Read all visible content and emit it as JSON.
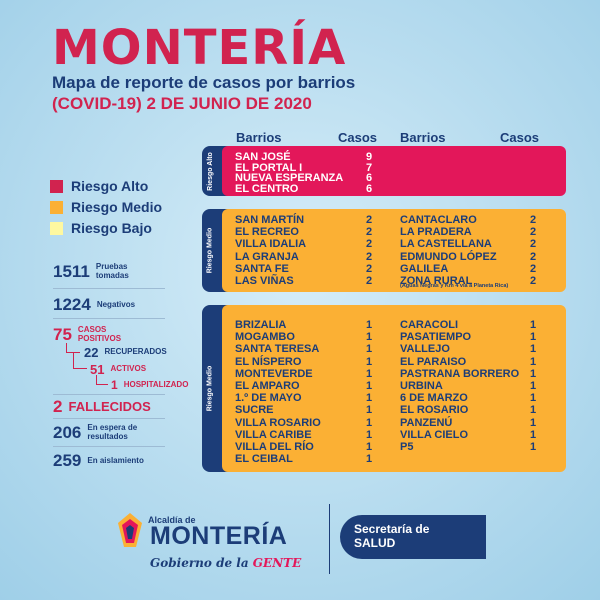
{
  "header": {
    "title": "MONTERÍA",
    "subtitle_line1": "Mapa de reporte de casos por barrios",
    "subtitle_line2": "(COVID-19) 2  DE JUNIO DE 2020"
  },
  "legend": [
    {
      "label": "Riesgo Alto",
      "color": "#d1234f"
    },
    {
      "label": "Riesgo Medio",
      "color": "#fbb034"
    },
    {
      "label": "Riesgo Bajo",
      "color": "#fef8a0"
    }
  ],
  "stats": {
    "pruebas": {
      "num": "1511",
      "label": "Pruebas tomadas"
    },
    "negativos": {
      "num": "1224",
      "label": "Negativos"
    },
    "positivos": {
      "num": "75",
      "label": "CASOS POSITIVOS"
    },
    "recuperados": {
      "num": "22",
      "label": "RECUPERADOS"
    },
    "activos": {
      "num": "51",
      "label": "ACTIVOS"
    },
    "hospitalizado": {
      "num": "1",
      "label": "HOSPITALIZADO"
    },
    "fallecidos": {
      "num": "2",
      "label": "FALLECIDOS"
    },
    "espera": {
      "num": "206",
      "label": "En espera de resultados"
    },
    "aislamiento": {
      "num": "259",
      "label": "En aislamiento"
    }
  },
  "table_headers": {
    "barrios": "Barrios",
    "casos": "Casos"
  },
  "groups": {
    "alto": {
      "side_label": "Riesgo Alto",
      "left": [
        {
          "name": "SAN JOSÉ",
          "cases": "9"
        },
        {
          "name": "EL PORTAL I",
          "cases": "7"
        },
        {
          "name": "NUEVA ESPERANZA",
          "cases": "6"
        },
        {
          "name": "EL CENTRO",
          "cases": "6"
        }
      ]
    },
    "medio1": {
      "side_label": "Riesgo Medio",
      "left": [
        {
          "name": "SAN MARTÍN",
          "cases": "2"
        },
        {
          "name": "EL RECREO",
          "cases": "2"
        },
        {
          "name": "VILLA IDALIA",
          "cases": "2"
        },
        {
          "name": "LA GRANJA",
          "cases": "2"
        },
        {
          "name": "SANTA FE",
          "cases": "2"
        },
        {
          "name": "LAS VIÑAS",
          "cases": "2"
        }
      ],
      "right": [
        {
          "name": "CANTACLARO",
          "cases": "2"
        },
        {
          "name": "LA PRADERA",
          "cases": "2"
        },
        {
          "name": "LA CASTELLANA",
          "cases": "2"
        },
        {
          "name": "EDMUNDO LÓPEZ",
          "cases": "2"
        },
        {
          "name": "GALILEA",
          "cases": "2"
        },
        {
          "name": "ZONA RURAL",
          "cases": "2"
        }
      ],
      "note": "(Aguas Negras y Km 4 vía a Planeta Rica)"
    },
    "medio2": {
      "side_label": "Riesgo Medio",
      "left": [
        {
          "name": "BRIZALIA",
          "cases": "1"
        },
        {
          "name": "MOGAMBO",
          "cases": "1"
        },
        {
          "name": "SANTA TERESA",
          "cases": "1"
        },
        {
          "name": "EL NÍSPERO",
          "cases": "1"
        },
        {
          "name": "MONTEVERDE",
          "cases": "1"
        },
        {
          "name": "EL AMPARO",
          "cases": "1"
        },
        {
          "name": "1.º DE MAYO",
          "cases": "1"
        },
        {
          "name": "SUCRE",
          "cases": "1"
        },
        {
          "name": "VILLA ROSARIO",
          "cases": "1"
        },
        {
          "name": "VILLA CARIBE",
          "cases": "1"
        },
        {
          "name": "VILLA DEL RÍO",
          "cases": "1"
        },
        {
          "name": "EL CEIBAL",
          "cases": "1"
        }
      ],
      "right": [
        {
          "name": "CARACOLI",
          "cases": "1"
        },
        {
          "name": "PASATIEMPO",
          "cases": "1"
        },
        {
          "name": "VALLEJO",
          "cases": "1"
        },
        {
          "name": "EL PARAISO",
          "cases": "1"
        },
        {
          "name": "PASTRANA BORRERO",
          "cases": "1"
        },
        {
          "name": "URBINA",
          "cases": "1"
        },
        {
          "name": "6 DE MARZO",
          "cases": "1"
        },
        {
          "name": "EL ROSARIO",
          "cases": "1"
        },
        {
          "name": "PANZENÚ",
          "cases": "1"
        },
        {
          "name": "VILLA CIELO",
          "cases": "1"
        },
        {
          "name": "P5",
          "cases": "1"
        }
      ]
    }
  },
  "footer": {
    "alcaldia": "Alcaldía de",
    "logo": "MONTERÍA",
    "tagline_pre": "Gobierno de la",
    "tagline_accent": "GENTE",
    "secretaria_line1": "Secretaría de",
    "secretaria_line2": "SALUD"
  }
}
